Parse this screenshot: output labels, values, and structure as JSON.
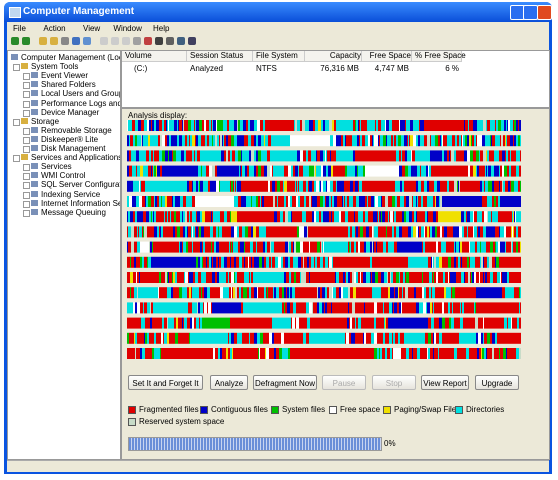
{
  "window": {
    "title": "Computer Management"
  },
  "menu": [
    "File",
    "Action",
    "View",
    "Window",
    "Help"
  ],
  "tree": [
    {
      "label": "Computer Management (Local)",
      "level": 0
    },
    {
      "label": "System Tools",
      "level": 1
    },
    {
      "label": "Event Viewer",
      "level": 2
    },
    {
      "label": "Shared Folders",
      "level": 2
    },
    {
      "label": "Local Users and Groups",
      "level": 2
    },
    {
      "label": "Performance Logs and Alerts",
      "level": 2
    },
    {
      "label": "Device Manager",
      "level": 2
    },
    {
      "label": "Storage",
      "level": 1
    },
    {
      "label": "Removable Storage",
      "level": 2
    },
    {
      "label": "Diskeeper® Lite",
      "level": 2
    },
    {
      "label": "Disk Management",
      "level": 2
    },
    {
      "label": "Services and Applications",
      "level": 1
    },
    {
      "label": "Services",
      "level": 2
    },
    {
      "label": "WMI Control",
      "level": 2
    },
    {
      "label": "SQL Server Configuration Ma",
      "level": 2
    },
    {
      "label": "Indexing Service",
      "level": 2
    },
    {
      "label": "Internet Information Service",
      "level": 2
    },
    {
      "label": "Message Queuing",
      "level": 2
    }
  ],
  "table": {
    "columns": [
      "Volume",
      "Session Status",
      "File System",
      "Capacity",
      "Free Space",
      "% Free Space"
    ],
    "rows": [
      [
        "(C:)",
        "Analyzed",
        "NTFS",
        "76,316 MB",
        "4,747 MB",
        "6 %"
      ]
    ]
  },
  "analysis_label": "Analysis display:",
  "buttons": [
    {
      "label": "Set It and Forget It",
      "enabled": true
    },
    {
      "label": "Analyze",
      "enabled": true
    },
    {
      "label": "Defragment Now",
      "enabled": true
    },
    {
      "label": "Pause",
      "enabled": false
    },
    {
      "label": "Stop",
      "enabled": false
    },
    {
      "label": "View Report",
      "enabled": true
    },
    {
      "label": "Upgrade",
      "enabled": true
    }
  ],
  "legend": [
    {
      "label": "Fragmented files",
      "color": "#e00000"
    },
    {
      "label": "Contiguous files",
      "color": "#0000c8"
    },
    {
      "label": "System files",
      "color": "#00c000"
    },
    {
      "label": "Free space",
      "color": "#ffffff"
    },
    {
      "label": "Paging/Swap File",
      "color": "#f0e000"
    },
    {
      "label": "Directories",
      "color": "#00e0e0"
    },
    {
      "label": "Reserved system space",
      "color": "#c8dcc8"
    }
  ],
  "progress": "0%"
}
